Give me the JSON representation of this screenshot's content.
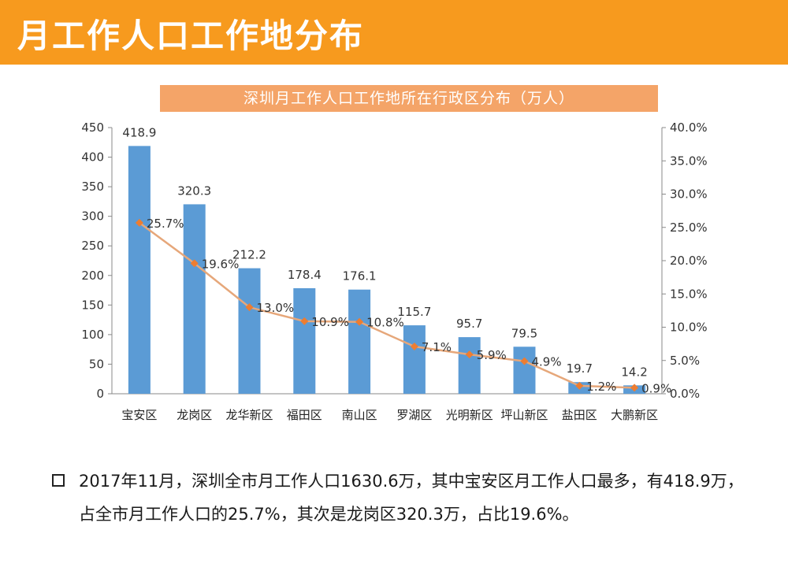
{
  "header": {
    "title": "月工作人口工作地分布"
  },
  "chart_banner": "深圳月工作人口工作地所在行政区分布（万人）",
  "colors": {
    "header_bg": "#f79a1e",
    "banner_bg": "#f4a468",
    "bar": "#5b9bd5",
    "line": "#e6a77a",
    "marker": "#ed7d31"
  },
  "chart_data": {
    "type": "bar",
    "title": "深圳月工作人口工作地所在行政区分布（万人）",
    "categories": [
      "宝安区",
      "龙岗区",
      "龙华新区",
      "福田区",
      "南山区",
      "罗湖区",
      "光明新区",
      "坪山新区",
      "盐田区",
      "大鹏新区"
    ],
    "series": [
      {
        "values": [
          418.9,
          320.3,
          212.2,
          178.4,
          176.1,
          115.7,
          95.7,
          79.5,
          19.7,
          14.2
        ],
        "type": "bar",
        "axis": "left"
      },
      {
        "values": [
          25.7,
          19.6,
          13.0,
          10.9,
          10.8,
          7.1,
          5.9,
          4.9,
          1.2,
          0.9
        ],
        "type": "line",
        "axis": "right",
        "unit": "%"
      }
    ],
    "ylim": [
      0,
      450
    ],
    "yticks": [
      "0",
      "50",
      "100",
      "150",
      "200",
      "250",
      "300",
      "350",
      "400",
      "450"
    ],
    "y2lim": [
      0,
      40
    ],
    "y2ticks": [
      "0.0%",
      "5.0%",
      "10.0%",
      "15.0%",
      "20.0%",
      "25.0%",
      "30.0%",
      "35.0%",
      "40.0%"
    ],
    "bar_labels": [
      "418.9",
      "320.3",
      "212.2",
      "178.4",
      "176.1",
      "115.7",
      "95.7",
      "79.5",
      "19.7",
      "14.2"
    ],
    "line_labels": [
      "25.7%",
      "19.6%",
      "13.0%",
      "10.9%",
      "10.8%",
      "7.1%",
      "5.9%",
      "4.9%",
      "1.2%",
      "0.9%"
    ],
    "grid": false
  },
  "note": {
    "bullet_icon": "square-bullet-icon",
    "text": "2017年11月，深圳全市月工作人口1630.6万，其中宝安区月工作人口最多，有418.9万，占全市月工作人口的25.7%，其次是龙岗区320.3万，占比19.6%。"
  }
}
